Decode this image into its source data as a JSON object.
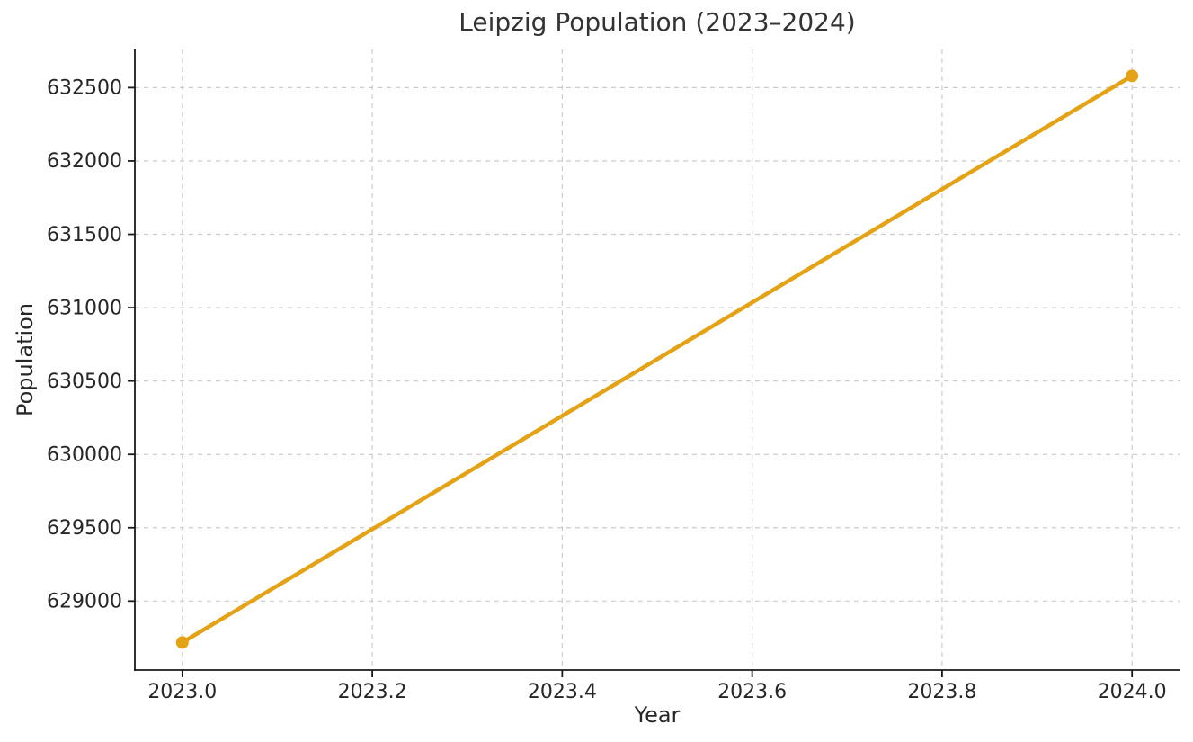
{
  "figure": {
    "background_color": "#ffffff",
    "title_color": "#333333",
    "text_color": "#262626",
    "spine_color": "#1a1a1a"
  },
  "chart_data": {
    "type": "line",
    "title": "Leipzig Population (2023–2024)",
    "xlabel": "Year",
    "ylabel": "Population",
    "x": [
      2023,
      2024
    ],
    "series": [
      {
        "name": "Population",
        "values": [
          628718,
          632580
        ]
      }
    ],
    "xlim": [
      2022.95,
      2024.05
    ],
    "ylim": [
      628530,
      632760
    ],
    "xticks": {
      "values": [
        2023.0,
        2023.2,
        2023.4,
        2023.6,
        2023.8,
        2024.0
      ],
      "labels": [
        "2023.0",
        "2023.2",
        "2023.4",
        "2023.6",
        "2023.8",
        "2024.0"
      ]
    },
    "yticks": {
      "values": [
        629000,
        629500,
        630000,
        630500,
        631000,
        631500,
        632000,
        632500
      ],
      "labels": [
        "629000",
        "629500",
        "630000",
        "630500",
        "631000",
        "631500",
        "632000",
        "632500"
      ]
    },
    "grid": true,
    "grid_style": "dashed",
    "grid_color": "#cccccc",
    "line_color": "#E4A317",
    "marker": "o",
    "marker_color": "#E4A317",
    "legend_position": "none"
  }
}
